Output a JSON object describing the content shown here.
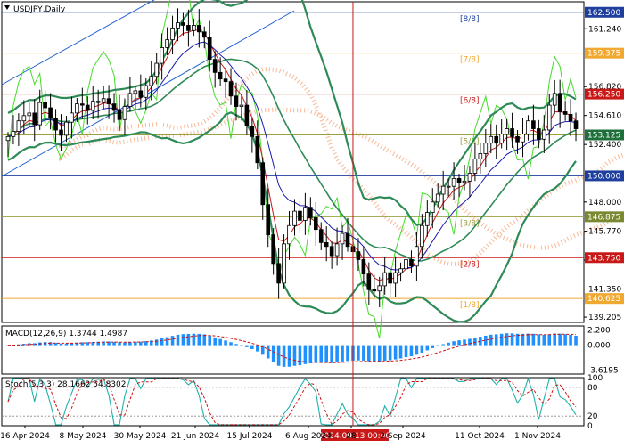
{
  "chart_data": {
    "type": "candlestick",
    "symbol_label": "USDJPY,Daily",
    "price_axis": {
      "ylim": [
        138.8,
        163.3
      ],
      "ticks": [
        "161.240",
        "156.820",
        "154.610",
        "152.400",
        "148.000",
        "145.770",
        "143.560",
        "141.350",
        "139.205"
      ],
      "highlight_levels": [
        {
          "value": 162.5,
          "label": "162.500",
          "color": "#1f3f9f"
        },
        {
          "value": 159.375,
          "label": "159.375",
          "color": "#f0a830"
        },
        {
          "value": 156.25,
          "label": "156.250",
          "color": "#c81818"
        },
        {
          "value": 153.125,
          "label": "153.125",
          "color": "#1f6f3a"
        },
        {
          "value": 150.0,
          "label": "150.000",
          "color": "#1f3f9f"
        },
        {
          "value": 146.875,
          "label": "146.875",
          "color": "#7a8a30"
        },
        {
          "value": 143.75,
          "label": "143.750",
          "color": "#c81818"
        },
        {
          "value": 140.625,
          "label": "140.625",
          "color": "#f0a830"
        }
      ]
    },
    "murrey_levels": [
      {
        "value": 162.5,
        "label": "[8/8]",
        "color": "#1f3f9f"
      },
      {
        "value": 159.375,
        "label": "[7/8]",
        "color": "#f0a830"
      },
      {
        "value": 156.25,
        "label": "[6/8]",
        "color": "#c81818"
      },
      {
        "value": 153.125,
        "label": "[5/8]",
        "color": "#9aa040"
      },
      {
        "value": 150.0,
        "label": "",
        "color": "#1f3f9f"
      },
      {
        "value": 146.875,
        "label": "[3/8]",
        "color": "#9aa040"
      },
      {
        "value": 143.75,
        "label": "[2/8]",
        "color": "#c81818"
      },
      {
        "value": 140.625,
        "label": "[1/8]",
        "color": "#f0a830"
      }
    ],
    "x_ticks": [
      "16 Apr 2024",
      "8 May 2024",
      "30 May 2024",
      "21 Jun 2024",
      "15 Jul 2024",
      "6 Aug 2024",
      "28",
      "2 Sep 2024",
      "11 Oct 2024",
      "1 Nov 2024"
    ],
    "crosshair": {
      "label": "2024.09.13 00:00"
    },
    "close_series": [
      153.0,
      153.4,
      154.2,
      154.6,
      154.8,
      153.9,
      155.6,
      155.2,
      154.4,
      153.5,
      153.1,
      154.1,
      154.8,
      155.5,
      155.4,
      155.0,
      155.7,
      155.6,
      155.9,
      155.5,
      155.0,
      154.3,
      155.3,
      156.3,
      156.5,
      156.0,
      156.9,
      157.6,
      158.6,
      159.8,
      160.4,
      161.3,
      161.7,
      161.5,
      161.1,
      161.5,
      161.0,
      160.6,
      158.9,
      157.9,
      157.4,
      157.2,
      156.1,
      155.3,
      155.4,
      153.8,
      153.0,
      151.0,
      147.8,
      145.5,
      143.3,
      141.8,
      144.8,
      146.2,
      147.3,
      146.6,
      147.6,
      146.8,
      145.9,
      144.9,
      144.6,
      143.9,
      144.8,
      145.6,
      144.6,
      144.2,
      143.6,
      142.5,
      141.3,
      141.2,
      141.6,
      142.6,
      141.8,
      142.6,
      142.9,
      143.6,
      143.1,
      144.6,
      146.2,
      147.2,
      148.0,
      148.6,
      149.2,
      149.2,
      149.8,
      149.5,
      149.6,
      150.2,
      151.3,
      151.7,
      152.5,
      153.0,
      152.5,
      153.2,
      153.6,
      153.0,
      152.6,
      153.2,
      154.2,
      153.6,
      152.8,
      153.5,
      155.4,
      156.3,
      154.9,
      154.7,
      154.2,
      153.6
    ],
    "overlays": {
      "bollinger_bands": {
        "color": "#2e8b57",
        "period": 20
      },
      "moving_averages": [
        {
          "period": 9,
          "color": "#c81818"
        },
        {
          "period": 21,
          "color": "#1a1ab0"
        }
      ],
      "ichimoku_cloud_color": "#f08040",
      "oscillator_line_color": "#46dc2a",
      "channel_lines_color": "#1f5fd0"
    },
    "macd": {
      "label": "MACD(12,26,9) 1.3744 1.4987",
      "params": [
        12,
        26,
        9
      ],
      "main": 1.3744,
      "signal": 1.4987,
      "ylim": [
        -4.2,
        2.8
      ],
      "ticks": [
        "2.200",
        "0.000",
        "-3.6195"
      ],
      "histogram_color": "#1e90ff",
      "signal_color": "#d01010"
    },
    "stochastic": {
      "label": "Stoch(5,3,3) 28.1662 54.8302",
      "params": [
        5,
        3,
        3
      ],
      "main": 28.1662,
      "signal": 54.8302,
      "ylim": [
        0,
        100
      ],
      "ticks": [
        "100",
        "80",
        "20",
        "0"
      ],
      "line_color": "#20b2aa",
      "signal_color": "#d01010"
    }
  }
}
